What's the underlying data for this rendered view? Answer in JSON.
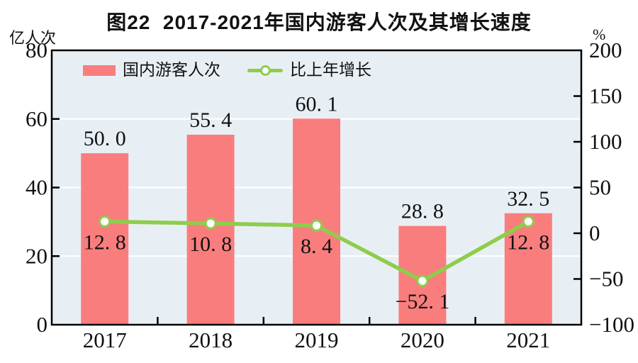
{
  "title": "图22  2017-2021年国内游客人次及其增长速度",
  "left_axis_unit": "亿人次",
  "right_axis_unit": "%",
  "colors": {
    "bar": "#fa7d7d",
    "line": "#8ecd4c",
    "plot_bg": "#e8eff4",
    "gridline": "#ffffff",
    "frame": "#000000",
    "text": "#111111",
    "marker_fill": "#ffffff"
  },
  "legend": {
    "bar_label": "国内游客人次",
    "line_label": "比上年增长"
  },
  "chart_data": {
    "type": "combo",
    "title": "图22  2017-2021年国内游客人次及其增长速度",
    "categories": [
      "2017",
      "2018",
      "2019",
      "2020",
      "2021"
    ],
    "series": [
      {
        "name": "国内游客人次",
        "type": "bar",
        "axis": "left",
        "unit": "亿人次",
        "values": [
          50.0,
          55.4,
          60.1,
          28.8,
          32.5
        ],
        "labels": [
          "50. 0",
          "55. 4",
          "60. 1",
          "28. 8",
          "32. 5"
        ]
      },
      {
        "name": "比上年增长",
        "type": "line",
        "axis": "right",
        "unit": "%",
        "values": [
          12.8,
          10.8,
          8.4,
          -52.1,
          12.8
        ],
        "labels": [
          "12. 8",
          "10. 8",
          "8. 4",
          "−52. 1",
          "12. 8"
        ]
      }
    ],
    "left_axis": {
      "label": "亿人次",
      "range": [
        0,
        80
      ],
      "ticks": [
        {
          "label": "80",
          "value": 80
        },
        {
          "label": "60",
          "value": 60
        },
        {
          "label": "40",
          "value": 40
        },
        {
          "label": "20",
          "value": 20
        },
        {
          "label": "0",
          "value": 0
        }
      ],
      "tick_marks": [
        20,
        40,
        60
      ]
    },
    "right_axis": {
      "label": "%",
      "range": [
        -100,
        200
      ],
      "ticks": [
        {
          "label": "200",
          "value": 200
        },
        {
          "label": "150",
          "value": 150
        },
        {
          "label": "100",
          "value": 100
        },
        {
          "label": "50",
          "value": 50
        },
        {
          "label": "0",
          "value": 0
        },
        {
          "label": "−50",
          "value": -50
        },
        {
          "label": "−100",
          "value": -100
        }
      ],
      "tick_marks": [
        150,
        100,
        50,
        0,
        -50
      ]
    },
    "gridlines": [
      20,
      40,
      60
    ],
    "grid": true,
    "legend_position": "top-left"
  }
}
